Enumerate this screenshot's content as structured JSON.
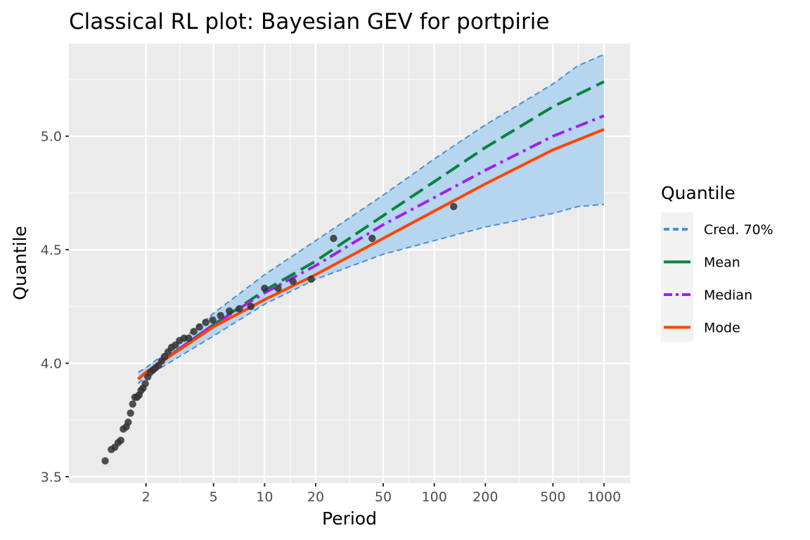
{
  "chart_data": {
    "type": "line",
    "title": "Classical RL plot: Bayesian GEV for portpirie",
    "xlabel": "Period",
    "ylabel": "Quantile",
    "x_scale": "log10",
    "xlim": [
      1.0,
      1000
    ],
    "ylim": [
      3.5,
      5.38
    ],
    "x_ticks": [
      2,
      5,
      10,
      20,
      50,
      100,
      200,
      500,
      1000
    ],
    "x_tick_labels": [
      "2",
      "5",
      "10",
      "20",
      "50",
      "100",
      "200",
      "500",
      "1000"
    ],
    "y_ticks": [
      3.5,
      4.0,
      4.5,
      5.0
    ],
    "y_tick_labels": [
      "3.5",
      "4.0",
      "4.5",
      "5.0"
    ],
    "grid": true,
    "legend": {
      "title": "Quantile",
      "position": "right",
      "entries": [
        "Cred. 70%",
        "Mean",
        "Median",
        "Mode"
      ]
    },
    "colors": {
      "panel_background": "#ebebeb",
      "grid": "#ffffff",
      "band_fill": "#b3d4ee",
      "band_edge": "#4a90d0",
      "mean": "#00843d",
      "median": "#a020f0",
      "mode": "#ff4500",
      "points": "#333333"
    },
    "series": [
      {
        "name": "Cred. 70%",
        "role": "band",
        "x": [
          1.8,
          2,
          3,
          5,
          10,
          20,
          50,
          100,
          200,
          500,
          700,
          1000
        ],
        "lower": [
          3.91,
          3.94,
          4.02,
          4.12,
          4.26,
          4.37,
          4.48,
          4.54,
          4.6,
          4.66,
          4.69,
          4.7
        ],
        "upper": [
          3.96,
          3.98,
          4.08,
          4.22,
          4.39,
          4.54,
          4.74,
          4.9,
          5.05,
          5.23,
          5.31,
          5.36
        ]
      },
      {
        "name": "Mean",
        "role": "line",
        "x": [
          1.8,
          2,
          5,
          10,
          20,
          50,
          100,
          200,
          500,
          1000
        ],
        "y": [
          3.93,
          3.96,
          4.17,
          4.32,
          4.45,
          4.65,
          4.8,
          4.95,
          5.13,
          5.24
        ]
      },
      {
        "name": "Median",
        "role": "line",
        "x": [
          1.8,
          2,
          5,
          10,
          20,
          50,
          100,
          200,
          500,
          1000
        ],
        "y": [
          3.93,
          3.96,
          4.17,
          4.31,
          4.43,
          4.61,
          4.73,
          4.85,
          5.0,
          5.09
        ]
      },
      {
        "name": "Mode",
        "role": "line",
        "x": [
          1.8,
          2,
          5,
          10,
          20,
          50,
          100,
          200,
          500,
          1000
        ],
        "y": [
          3.93,
          3.96,
          4.16,
          4.28,
          4.39,
          4.55,
          4.67,
          4.79,
          4.94,
          5.03
        ]
      }
    ],
    "points": {
      "x": [
        1.15,
        1.25,
        1.31,
        1.37,
        1.42,
        1.47,
        1.53,
        1.57,
        1.62,
        1.67,
        1.72,
        1.77,
        1.82,
        1.87,
        1.92,
        1.98,
        2.05,
        2.12,
        2.2,
        2.28,
        2.37,
        2.47,
        2.58,
        2.7,
        2.83,
        2.98,
        3.15,
        3.35,
        3.57,
        3.83,
        4.13,
        4.5,
        4.95,
        5.5,
        6.2,
        7.1,
        8.3,
        10.0,
        12.0,
        14.7,
        18.8,
        25.5,
        43.0,
        130.0
      ],
      "y": [
        3.57,
        3.62,
        3.63,
        3.65,
        3.66,
        3.71,
        3.72,
        3.74,
        3.78,
        3.82,
        3.85,
        3.85,
        3.86,
        3.88,
        3.89,
        3.91,
        3.94,
        3.96,
        3.97,
        3.98,
        3.99,
        4.01,
        4.03,
        4.05,
        4.07,
        4.08,
        4.1,
        4.11,
        4.11,
        4.14,
        4.16,
        4.18,
        4.19,
        4.21,
        4.23,
        4.24,
        4.25,
        4.33,
        4.33,
        4.36,
        4.37,
        4.55,
        4.55,
        4.69
      ]
    }
  }
}
